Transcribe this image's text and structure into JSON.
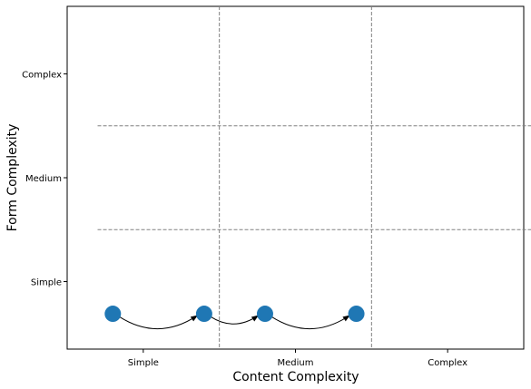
{
  "chart_data": {
    "type": "scatter",
    "title": "",
    "xlabel": "Content Complexity",
    "ylabel": "Form Complexity",
    "x_categories": [
      "Simple",
      "Medium",
      "Complex"
    ],
    "y_categories": [
      "Simple",
      "Medium",
      "Complex"
    ],
    "xlim": [
      -0.5,
      2.5
    ],
    "ylim": [
      -0.65,
      2.65
    ],
    "x_dividers": [
      0.5,
      1.5
    ],
    "y_dividers": [
      0.5,
      1.5
    ],
    "divider_extent": [
      -0.3,
      2.7
    ],
    "grid": false,
    "color": "#1f77b4",
    "points": [
      {
        "x": -0.2,
        "y": -0.31
      },
      {
        "x": 0.4,
        "y": -0.31
      },
      {
        "x": 0.8,
        "y": -0.31
      },
      {
        "x": 1.4,
        "y": -0.31
      }
    ],
    "arrows": [
      {
        "from": 0,
        "to": 1
      },
      {
        "from": 1,
        "to": 2
      },
      {
        "from": 2,
        "to": 3
      }
    ]
  }
}
